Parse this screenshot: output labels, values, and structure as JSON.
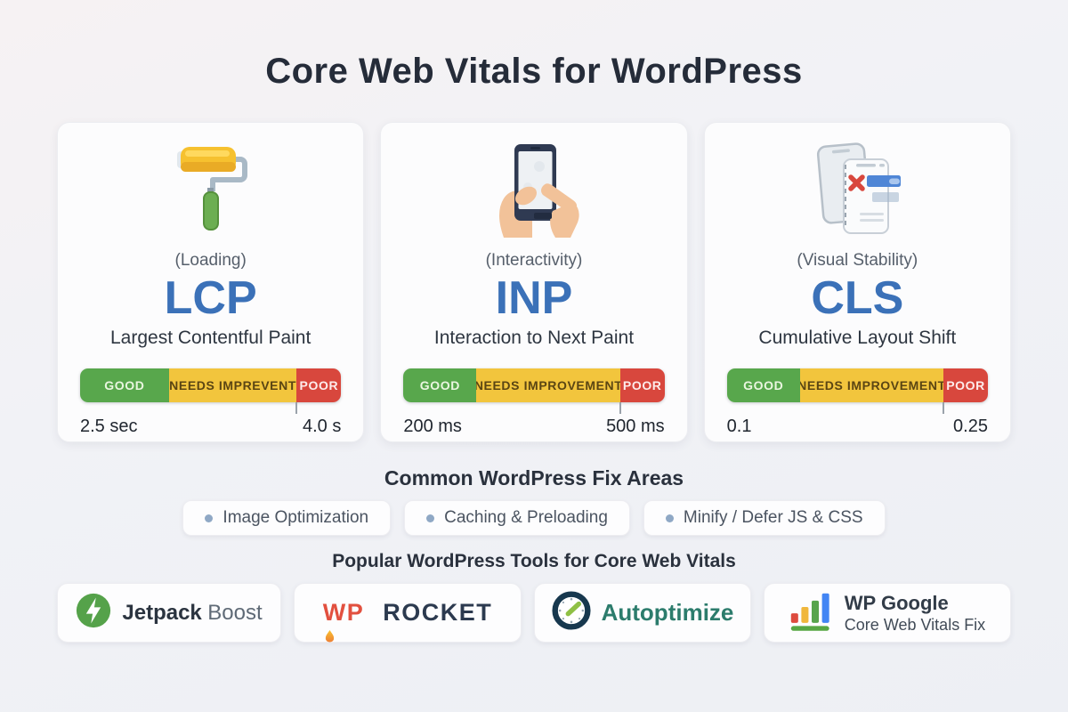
{
  "page": {
    "title": "Core Web Vitals for WordPress"
  },
  "colors": {
    "accent_blue": "#3b71b8",
    "good_green": "#58a74c",
    "warn_yellow": "#f2c53d",
    "poor_red": "#d8473d",
    "background": "#f1f2f6"
  },
  "cards": [
    {
      "icon": "paint-roller-icon",
      "category": "(Loading)",
      "code": "LCP",
      "name": "Largest Contentful Paint",
      "scale": {
        "segments": [
          {
            "label": "GOOD",
            "color": "#58a74c",
            "width_pct": 34
          },
          {
            "label": "NEEDS IMPREVENT",
            "color": "#f2c53d",
            "width_pct": 49
          },
          {
            "label": "POOR",
            "color": "#d8473d",
            "width_pct": 17
          }
        ],
        "tick_pct": 83,
        "min_label": "2.5 sec",
        "max_label": "4.0 s"
      }
    },
    {
      "icon": "phone-tap-icon",
      "category": "(Interactivity)",
      "code": "INP",
      "name": "Interaction to Next Paint",
      "scale": {
        "segments": [
          {
            "label": "GOOD",
            "color": "#58a74c",
            "width_pct": 28
          },
          {
            "label": "NEEDS IMPROVEMENT",
            "color": "#f2c53d",
            "width_pct": 55
          },
          {
            "label": "POOR",
            "color": "#d8473d",
            "width_pct": 17
          }
        ],
        "tick_pct": 83,
        "min_label": "200 ms",
        "max_label": "500 ms"
      }
    },
    {
      "icon": "layout-shift-icon",
      "category": "(Visual Stability)",
      "code": "CLS",
      "name": "Cumulative Layout Shift",
      "scale": {
        "segments": [
          {
            "label": "GOOD",
            "color": "#58a74c",
            "width_pct": 28
          },
          {
            "label": "NEEDS IMPROVEMENT",
            "color": "#f2c53d",
            "width_pct": 55
          },
          {
            "label": "POOR",
            "color": "#d8473d",
            "width_pct": 17
          }
        ],
        "tick_pct": 83,
        "min_label": "0.1",
        "max_label": "0.25"
      }
    }
  ],
  "fix_areas": {
    "heading": "Common WordPress Fix Areas",
    "items": [
      "Image Optimization",
      "Caching & Preloading",
      "Minify / Defer JS & CSS"
    ]
  },
  "tools": {
    "heading": "Popular WordPress Tools for Core Web Vitals",
    "items": [
      {
        "icon": "jetpack-bolt-icon",
        "name": "Jetpack",
        "suffix": "Boost"
      },
      {
        "icon": "rocket-flame-icon",
        "prefix": "WP",
        "name": "ROCKET"
      },
      {
        "icon": "autoptimize-clock-icon",
        "name": "Autoptimize"
      },
      {
        "icon": "bar-chart-icon",
        "name": "WP Google",
        "subtitle": "Core Web Vitals Fix"
      }
    ]
  }
}
